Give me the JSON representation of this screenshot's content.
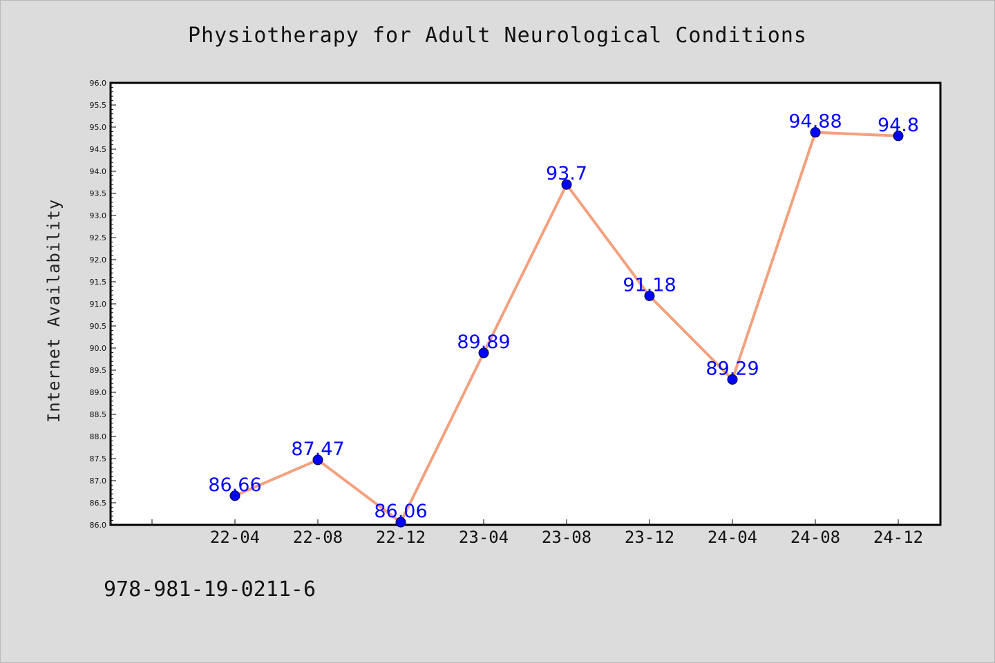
{
  "colors": {
    "background": "#dcdcdc",
    "plot_background": "#ffffff",
    "line": "#f4a07e",
    "marker": "#0000ff",
    "label": "#0000ff"
  },
  "footer": {
    "isbn": "978-981-19-0211-6"
  },
  "chart_data": {
    "type": "line",
    "title": "Physiotherapy for Adult Neurological Conditions",
    "xlabel": "",
    "ylabel": "Internet Availability",
    "categories": [
      "22-04",
      "22-08",
      "22-12",
      "23-04",
      "23-08",
      "23-12",
      "24-04",
      "24-08",
      "24-12"
    ],
    "series": [
      {
        "values": [
          86.66,
          87.47,
          86.06,
          89.89,
          93.7,
          91.18,
          89.29,
          94.88,
          94.8
        ],
        "data_labels": [
          "86.66",
          "87.47",
          "86.06",
          "89.89",
          "93.7",
          "91.18",
          "89.29",
          "94.88",
          "94.8"
        ]
      }
    ],
    "ylim": [
      86.0,
      96.0
    ],
    "yticks": [
      "86.0",
      "86.5",
      "87.0",
      "87.5",
      "88.0",
      "88.5",
      "89.0",
      "89.5",
      "90.0",
      "90.5",
      "91.0",
      "91.5",
      "92.0",
      "92.5",
      "93.0",
      "93.5",
      "94.0",
      "94.5",
      "95.0",
      "95.5",
      "96.0"
    ],
    "grid": false,
    "legend": "none"
  }
}
